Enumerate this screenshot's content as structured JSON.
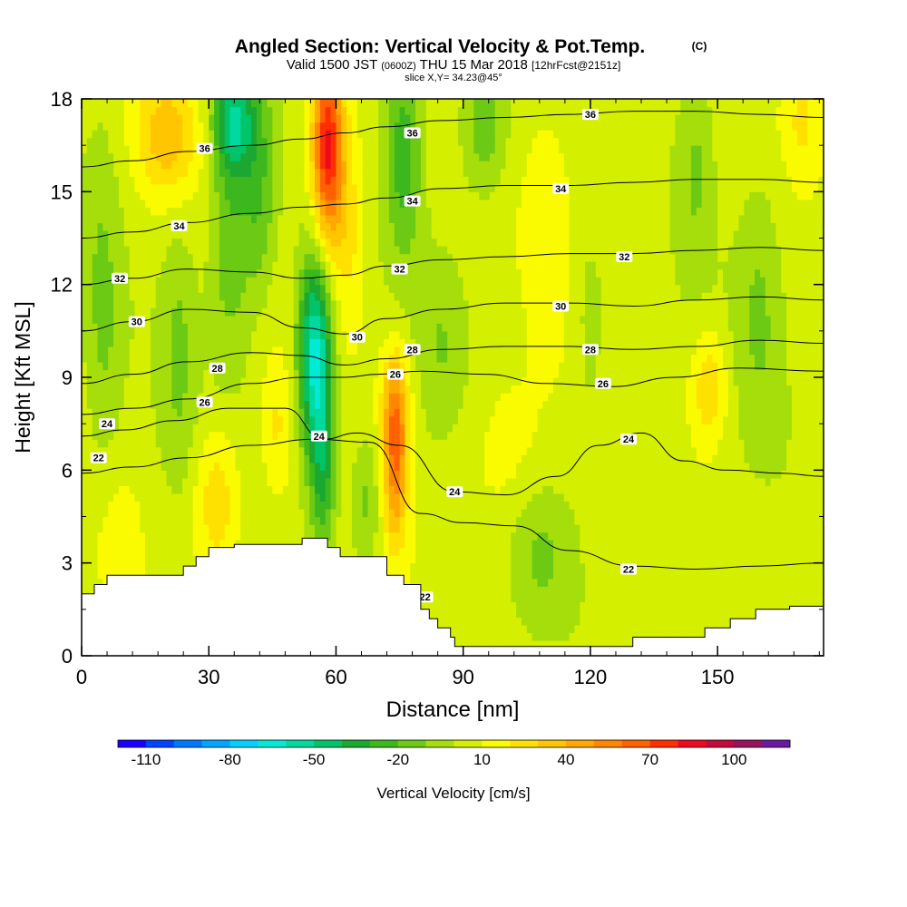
{
  "header": {
    "title": "Angled Section: Vertical Velocity & Pot.Temp.",
    "title_mark": "(C)",
    "valid_prefix": "Valid 1500 JST",
    "valid_zulu": "(0600Z)",
    "valid_date": "THU 15 Mar 2018",
    "forecast": "[12hrFcst@2151z]",
    "slice": "slice X,Y= 34.23@45°"
  },
  "chart_data": {
    "type": "heatmap",
    "xlabel": "Distance [nm]",
    "ylabel": "Height [Kft MSL]",
    "xlim": [
      0,
      175
    ],
    "ylim": [
      0,
      18
    ],
    "x_ticks": [
      0,
      30,
      60,
      90,
      120,
      150
    ],
    "y_ticks": [
      0,
      3,
      6,
      9,
      12,
      15,
      18
    ],
    "colorbar": {
      "label": "Vertical Velocity [cm/s]",
      "tick_labels": [
        "-110",
        "-80",
        "-50",
        "-20",
        "10",
        "40",
        "70",
        "100"
      ],
      "min": -120,
      "max": 120,
      "step": 10,
      "colors": [
        "#1a00ff",
        "#0044ff",
        "#0077ff",
        "#00a5ff",
        "#00cfff",
        "#00ead6",
        "#00d9a0",
        "#00c46a",
        "#1aa832",
        "#3cb81e",
        "#6cca14",
        "#a5de0a",
        "#d4ef00",
        "#fbfb00",
        "#ffe100",
        "#ffc500",
        "#ffa800",
        "#ff8600",
        "#ff6000",
        "#ff2e00",
        "#ed0a1e",
        "#c40a3c",
        "#96125e",
        "#6a1aa0"
      ]
    },
    "terrain_profile": {
      "x": [
        0,
        3,
        3,
        6,
        6,
        24,
        24,
        27,
        27,
        30,
        30,
        33,
        33,
        36,
        36,
        48,
        48,
        52,
        52,
        58,
        58,
        61,
        61,
        64,
        64,
        72,
        72,
        76,
        76,
        80,
        80,
        82,
        82,
        84,
        84,
        87,
        87,
        88,
        88,
        92,
        92,
        120,
        120,
        130,
        130,
        147,
        147,
        153,
        153,
        159,
        159,
        167,
        167,
        175
      ],
      "h": [
        2.0,
        2.0,
        2.3,
        2.3,
        2.6,
        2.6,
        2.9,
        2.9,
        3.2,
        3.2,
        3.5,
        3.5,
        3.5,
        3.5,
        3.6,
        3.6,
        3.6,
        3.6,
        3.8,
        3.8,
        3.5,
        3.5,
        3.2,
        3.2,
        3.2,
        3.2,
        2.6,
        2.6,
        2.3,
        2.3,
        1.5,
        1.5,
        1.2,
        1.2,
        0.9,
        0.9,
        0.6,
        0.6,
        0.3,
        0.3,
        0.3,
        0.3,
        0.3,
        0.3,
        0.6,
        0.6,
        0.9,
        0.9,
        1.2,
        1.2,
        1.5,
        1.5,
        1.6,
        1.6
      ]
    },
    "velocity_features": [
      {
        "x": 5,
        "z": 11,
        "sx": 3,
        "sz": 4,
        "v": -15
      },
      {
        "x": 9,
        "z": 4,
        "sx": 4,
        "sz": 1.6,
        "v": 8
      },
      {
        "x": 20,
        "z": 16.8,
        "sx": 5,
        "sz": 1.4,
        "v": 30
      },
      {
        "x": 23,
        "z": 10,
        "sx": 3,
        "sz": 3,
        "v": -15
      },
      {
        "x": 32,
        "z": 5,
        "sx": 4,
        "sz": 1.8,
        "v": 25
      },
      {
        "x": 35,
        "z": 14,
        "sx": 3.5,
        "sz": 3.5,
        "v": -25
      },
      {
        "x": 36,
        "z": 17.3,
        "sx": 3.5,
        "sz": 1.2,
        "v": -45
      },
      {
        "x": 42,
        "z": 15,
        "sx": 3,
        "sz": 2.5,
        "v": -25
      },
      {
        "x": 46,
        "z": 7.3,
        "sx": 2.5,
        "sz": 1.6,
        "v": 15
      },
      {
        "x": 55,
        "z": 9.8,
        "sx": 2.8,
        "sz": 2.3,
        "v": -70
      },
      {
        "x": 57,
        "z": 6.2,
        "sx": 2.2,
        "sz": 2.0,
        "v": -35
      },
      {
        "x": 58,
        "z": 16.5,
        "sx": 2.6,
        "sz": 2.2,
        "v": 80
      },
      {
        "x": 63,
        "z": 14,
        "sx": 3,
        "sz": 2.5,
        "v": 20
      },
      {
        "x": 67,
        "z": 5,
        "sx": 2.5,
        "sz": 1.6,
        "v": -20
      },
      {
        "x": 74,
        "z": 6.3,
        "sx": 2,
        "sz": 1.8,
        "v": 50
      },
      {
        "x": 74,
        "z": 8.3,
        "sx": 2.5,
        "sz": 1.3,
        "v": 25
      },
      {
        "x": 76,
        "z": 16.5,
        "sx": 3,
        "sz": 2.5,
        "v": -30
      },
      {
        "x": 85,
        "z": 10,
        "sx": 4,
        "sz": 2,
        "v": -12
      },
      {
        "x": 95,
        "z": 17.2,
        "sx": 4,
        "sz": 1.6,
        "v": -25
      },
      {
        "x": 100,
        "z": 6.5,
        "sx": 7,
        "sz": 2,
        "v": 12
      },
      {
        "x": 108,
        "z": 3.4,
        "sx": 5,
        "sz": 1.6,
        "v": -15
      },
      {
        "x": 110,
        "z": 14,
        "sx": 4,
        "sz": 3,
        "v": 8
      },
      {
        "x": 120,
        "z": 11,
        "sx": 3,
        "sz": 3,
        "v": -12
      },
      {
        "x": 122,
        "z": 16,
        "sx": 4,
        "sz": 2.2,
        "v": 8
      },
      {
        "x": 145,
        "z": 16,
        "sx": 3,
        "sz": 2.5,
        "v": -15
      },
      {
        "x": 148,
        "z": 8.7,
        "sx": 3,
        "sz": 1.3,
        "v": 25
      },
      {
        "x": 160,
        "z": 11.5,
        "sx": 4,
        "sz": 3,
        "v": -15
      },
      {
        "x": 170,
        "z": 17.3,
        "sx": 3,
        "sz": 1.2,
        "v": 15
      }
    ],
    "isotherms": [
      {
        "level": 22,
        "points": [
          [
            0,
            5.9
          ],
          [
            12,
            6.1
          ],
          [
            25,
            6.4
          ],
          [
            40,
            6.8
          ],
          [
            55,
            7.0
          ],
          [
            68,
            6.9
          ],
          [
            80,
            4.6
          ],
          [
            90,
            4.3
          ],
          [
            102,
            4.2
          ],
          [
            115,
            3.4
          ],
          [
            130,
            2.9
          ],
          [
            145,
            2.8
          ],
          [
            160,
            2.9
          ],
          [
            175,
            3.0
          ]
        ],
        "labels": [
          {
            "x": 4,
            "z": 6.4
          },
          {
            "x": 81,
            "z": 1.9
          },
          {
            "x": 129,
            "z": 2.8
          }
        ]
      },
      {
        "level": 24,
        "points": [
          [
            0,
            7.1
          ],
          [
            10,
            7.3
          ],
          [
            22,
            7.6
          ],
          [
            35,
            8.0
          ],
          [
            48,
            8.0
          ],
          [
            57,
            7.0
          ],
          [
            65,
            7.2
          ],
          [
            75,
            6.8
          ],
          [
            88,
            5.3
          ],
          [
            100,
            5.2
          ],
          [
            112,
            5.8
          ],
          [
            122,
            6.8
          ],
          [
            132,
            7.2
          ],
          [
            142,
            6.3
          ],
          [
            152,
            6.0
          ],
          [
            165,
            5.9
          ],
          [
            175,
            5.8
          ]
        ],
        "labels": [
          {
            "x": 6,
            "z": 7.5
          },
          {
            "x": 56,
            "z": 7.1
          },
          {
            "x": 88,
            "z": 5.3
          },
          {
            "x": 129,
            "z": 7.0
          }
        ]
      },
      {
        "level": 26,
        "points": [
          [
            0,
            7.8
          ],
          [
            12,
            8.0
          ],
          [
            25,
            8.3
          ],
          [
            40,
            8.8
          ],
          [
            52,
            9.0
          ],
          [
            62,
            9.0
          ],
          [
            70,
            9.1
          ],
          [
            80,
            9.2
          ],
          [
            95,
            9.1
          ],
          [
            110,
            8.8
          ],
          [
            125,
            8.7
          ],
          [
            140,
            9.0
          ],
          [
            155,
            9.3
          ],
          [
            175,
            9.2
          ]
        ],
        "labels": [
          {
            "x": 29,
            "z": 8.2
          },
          {
            "x": 74,
            "z": 9.1
          },
          {
            "x": 123,
            "z": 8.8
          }
        ]
      },
      {
        "level": 28,
        "points": [
          [
            0,
            8.8
          ],
          [
            12,
            9.1
          ],
          [
            25,
            9.5
          ],
          [
            40,
            9.8
          ],
          [
            52,
            9.7
          ],
          [
            62,
            9.4
          ],
          [
            72,
            9.6
          ],
          [
            85,
            9.9
          ],
          [
            100,
            10.0
          ],
          [
            115,
            10.0
          ],
          [
            130,
            9.9
          ],
          [
            145,
            10.0
          ],
          [
            160,
            10.2
          ],
          [
            175,
            10.1
          ]
        ],
        "labels": [
          {
            "x": 32,
            "z": 9.3
          },
          {
            "x": 78,
            "z": 9.9
          },
          {
            "x": 120,
            "z": 9.9
          }
        ]
      },
      {
        "level": 30,
        "points": [
          [
            0,
            10.5
          ],
          [
            12,
            10.8
          ],
          [
            25,
            11.2
          ],
          [
            40,
            11.1
          ],
          [
            52,
            10.6
          ],
          [
            62,
            10.4
          ],
          [
            72,
            10.9
          ],
          [
            85,
            11.2
          ],
          [
            100,
            11.4
          ],
          [
            115,
            11.4
          ],
          [
            130,
            11.3
          ],
          [
            145,
            11.5
          ],
          [
            160,
            11.6
          ],
          [
            175,
            11.5
          ]
        ],
        "labels": [
          {
            "x": 13,
            "z": 10.8
          },
          {
            "x": 65,
            "z": 10.3
          },
          {
            "x": 113,
            "z": 11.3
          }
        ]
      },
      {
        "level": 32,
        "points": [
          [
            0,
            12.0
          ],
          [
            12,
            12.2
          ],
          [
            25,
            12.5
          ],
          [
            40,
            12.4
          ],
          [
            52,
            12.2
          ],
          [
            62,
            12.3
          ],
          [
            72,
            12.6
          ],
          [
            85,
            12.8
          ],
          [
            100,
            12.9
          ],
          [
            115,
            13.0
          ],
          [
            130,
            13.0
          ],
          [
            145,
            13.1
          ],
          [
            160,
            13.2
          ],
          [
            175,
            13.1
          ]
        ],
        "labels": [
          {
            "x": 9,
            "z": 12.2
          },
          {
            "x": 75,
            "z": 12.5
          },
          {
            "x": 128,
            "z": 12.9
          }
        ]
      },
      {
        "level": 34,
        "points": [
          [
            0,
            13.5
          ],
          [
            12,
            13.7
          ],
          [
            25,
            14.0
          ],
          [
            40,
            14.3
          ],
          [
            52,
            14.5
          ],
          [
            62,
            14.6
          ],
          [
            72,
            14.8
          ],
          [
            85,
            15.1
          ],
          [
            100,
            15.2
          ],
          [
            115,
            15.2
          ],
          [
            130,
            15.3
          ],
          [
            145,
            15.4
          ],
          [
            160,
            15.4
          ],
          [
            175,
            15.3
          ]
        ],
        "labels": [
          {
            "x": 23,
            "z": 13.9
          },
          {
            "x": 78,
            "z": 14.7
          },
          {
            "x": 113,
            "z": 15.1
          }
        ]
      },
      {
        "level": 36,
        "points": [
          [
            0,
            15.8
          ],
          [
            12,
            16.0
          ],
          [
            25,
            16.3
          ],
          [
            40,
            16.5
          ],
          [
            52,
            16.7
          ],
          [
            62,
            16.9
          ],
          [
            72,
            17.1
          ],
          [
            85,
            17.3
          ],
          [
            100,
            17.4
          ],
          [
            115,
            17.5
          ],
          [
            130,
            17.6
          ],
          [
            145,
            17.6
          ],
          [
            160,
            17.5
          ],
          [
            175,
            17.4
          ]
        ],
        "labels": [
          {
            "x": 29,
            "z": 16.4
          },
          {
            "x": 78,
            "z": 16.9
          },
          {
            "x": 120,
            "z": 17.5
          }
        ]
      }
    ]
  }
}
